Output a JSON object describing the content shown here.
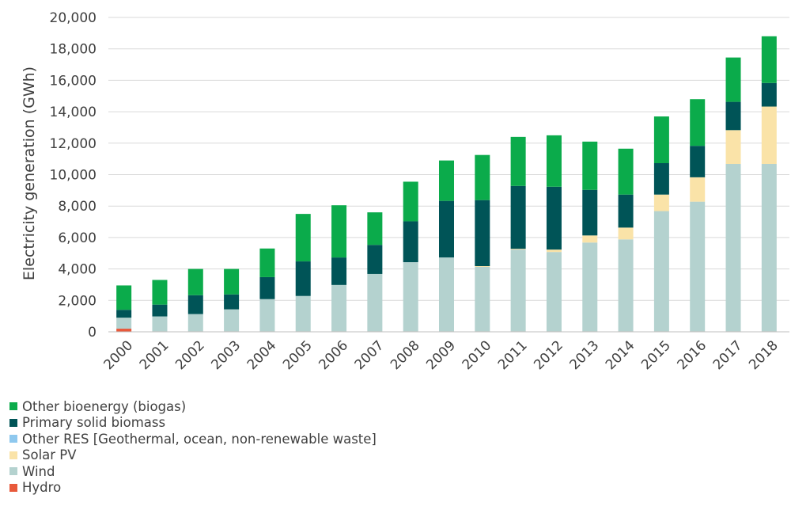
{
  "chart_data": {
    "type": "bar",
    "stacked": true,
    "title": "",
    "xlabel": "",
    "ylabel": "Electricity generation (GWh)",
    "ylim": [
      0,
      20000
    ],
    "yticks": [
      "0",
      "2,000",
      "4,000",
      "6,000",
      "8,000",
      "10,000",
      "12,000",
      "14,000",
      "16,000",
      "18,000",
      "20,000"
    ],
    "grid": true,
    "legend_position": "bottom-left",
    "categories": [
      "2000",
      "2001",
      "2002",
      "2003",
      "2004",
      "2005",
      "2006",
      "2007",
      "2008",
      "2009",
      "2010",
      "2011",
      "2012",
      "2013",
      "2014",
      "2015",
      "2016",
      "2017",
      "2018"
    ],
    "series": [
      {
        "name": "Hydro",
        "color": "#e8593b",
        "values": [
          200,
          30,
          30,
          30,
          30,
          30,
          30,
          30,
          30,
          30,
          30,
          30,
          30,
          30,
          30,
          30,
          30,
          30,
          30
        ]
      },
      {
        "name": "Wind",
        "color": "#b4d2cf",
        "values": [
          700,
          950,
          1100,
          1400,
          2050,
          2250,
          2950,
          3650,
          4400,
          4700,
          4100,
          5200,
          5050,
          5650,
          5850,
          7650,
          8250,
          10650,
          10650
        ]
      },
      {
        "name": "Solar PV",
        "color": "#fae3a8",
        "values": [
          0,
          0,
          0,
          0,
          0,
          0,
          0,
          0,
          0,
          0,
          50,
          50,
          150,
          450,
          750,
          1050,
          1550,
          2150,
          3650
        ]
      },
      {
        "name": "Other RES [Geothermal, ocean, non-renewable waste]",
        "color": "#8ec8ee",
        "values": [
          0,
          0,
          0,
          0,
          0,
          0,
          0,
          0,
          0,
          0,
          0,
          0,
          0,
          0,
          0,
          0,
          0,
          0,
          0
        ]
      },
      {
        "name": "Primary solid biomass",
        "color": "#005457",
        "values": [
          500,
          750,
          1200,
          950,
          1400,
          2200,
          1750,
          1850,
          2600,
          3600,
          4200,
          4000,
          4000,
          2900,
          2100,
          2000,
          2000,
          1800,
          1500
        ]
      },
      {
        "name": "Other bioenergy (biogas)",
        "color": "#0bab4b",
        "values": [
          1550,
          1570,
          1670,
          1620,
          1820,
          3020,
          3320,
          2070,
          2520,
          2570,
          2870,
          3120,
          3270,
          3070,
          2920,
          2970,
          2970,
          2820,
          2970
        ]
      }
    ],
    "legend": [
      {
        "name": "Other bioenergy (biogas)",
        "color": "#0bab4b"
      },
      {
        "name": "Primary solid biomass",
        "color": "#005457"
      },
      {
        "name": "Other RES [Geothermal, ocean, non-renewable waste]",
        "color": "#8ec8ee"
      },
      {
        "name": "Solar PV",
        "color": "#fae3a8"
      },
      {
        "name": "Wind",
        "color": "#b4d2cf"
      },
      {
        "name": "Hydro",
        "color": "#e8593b"
      }
    ],
    "colors": {
      "grid": "#d9d9d9",
      "axis": "#bfbfbf",
      "text": "#404040"
    }
  }
}
